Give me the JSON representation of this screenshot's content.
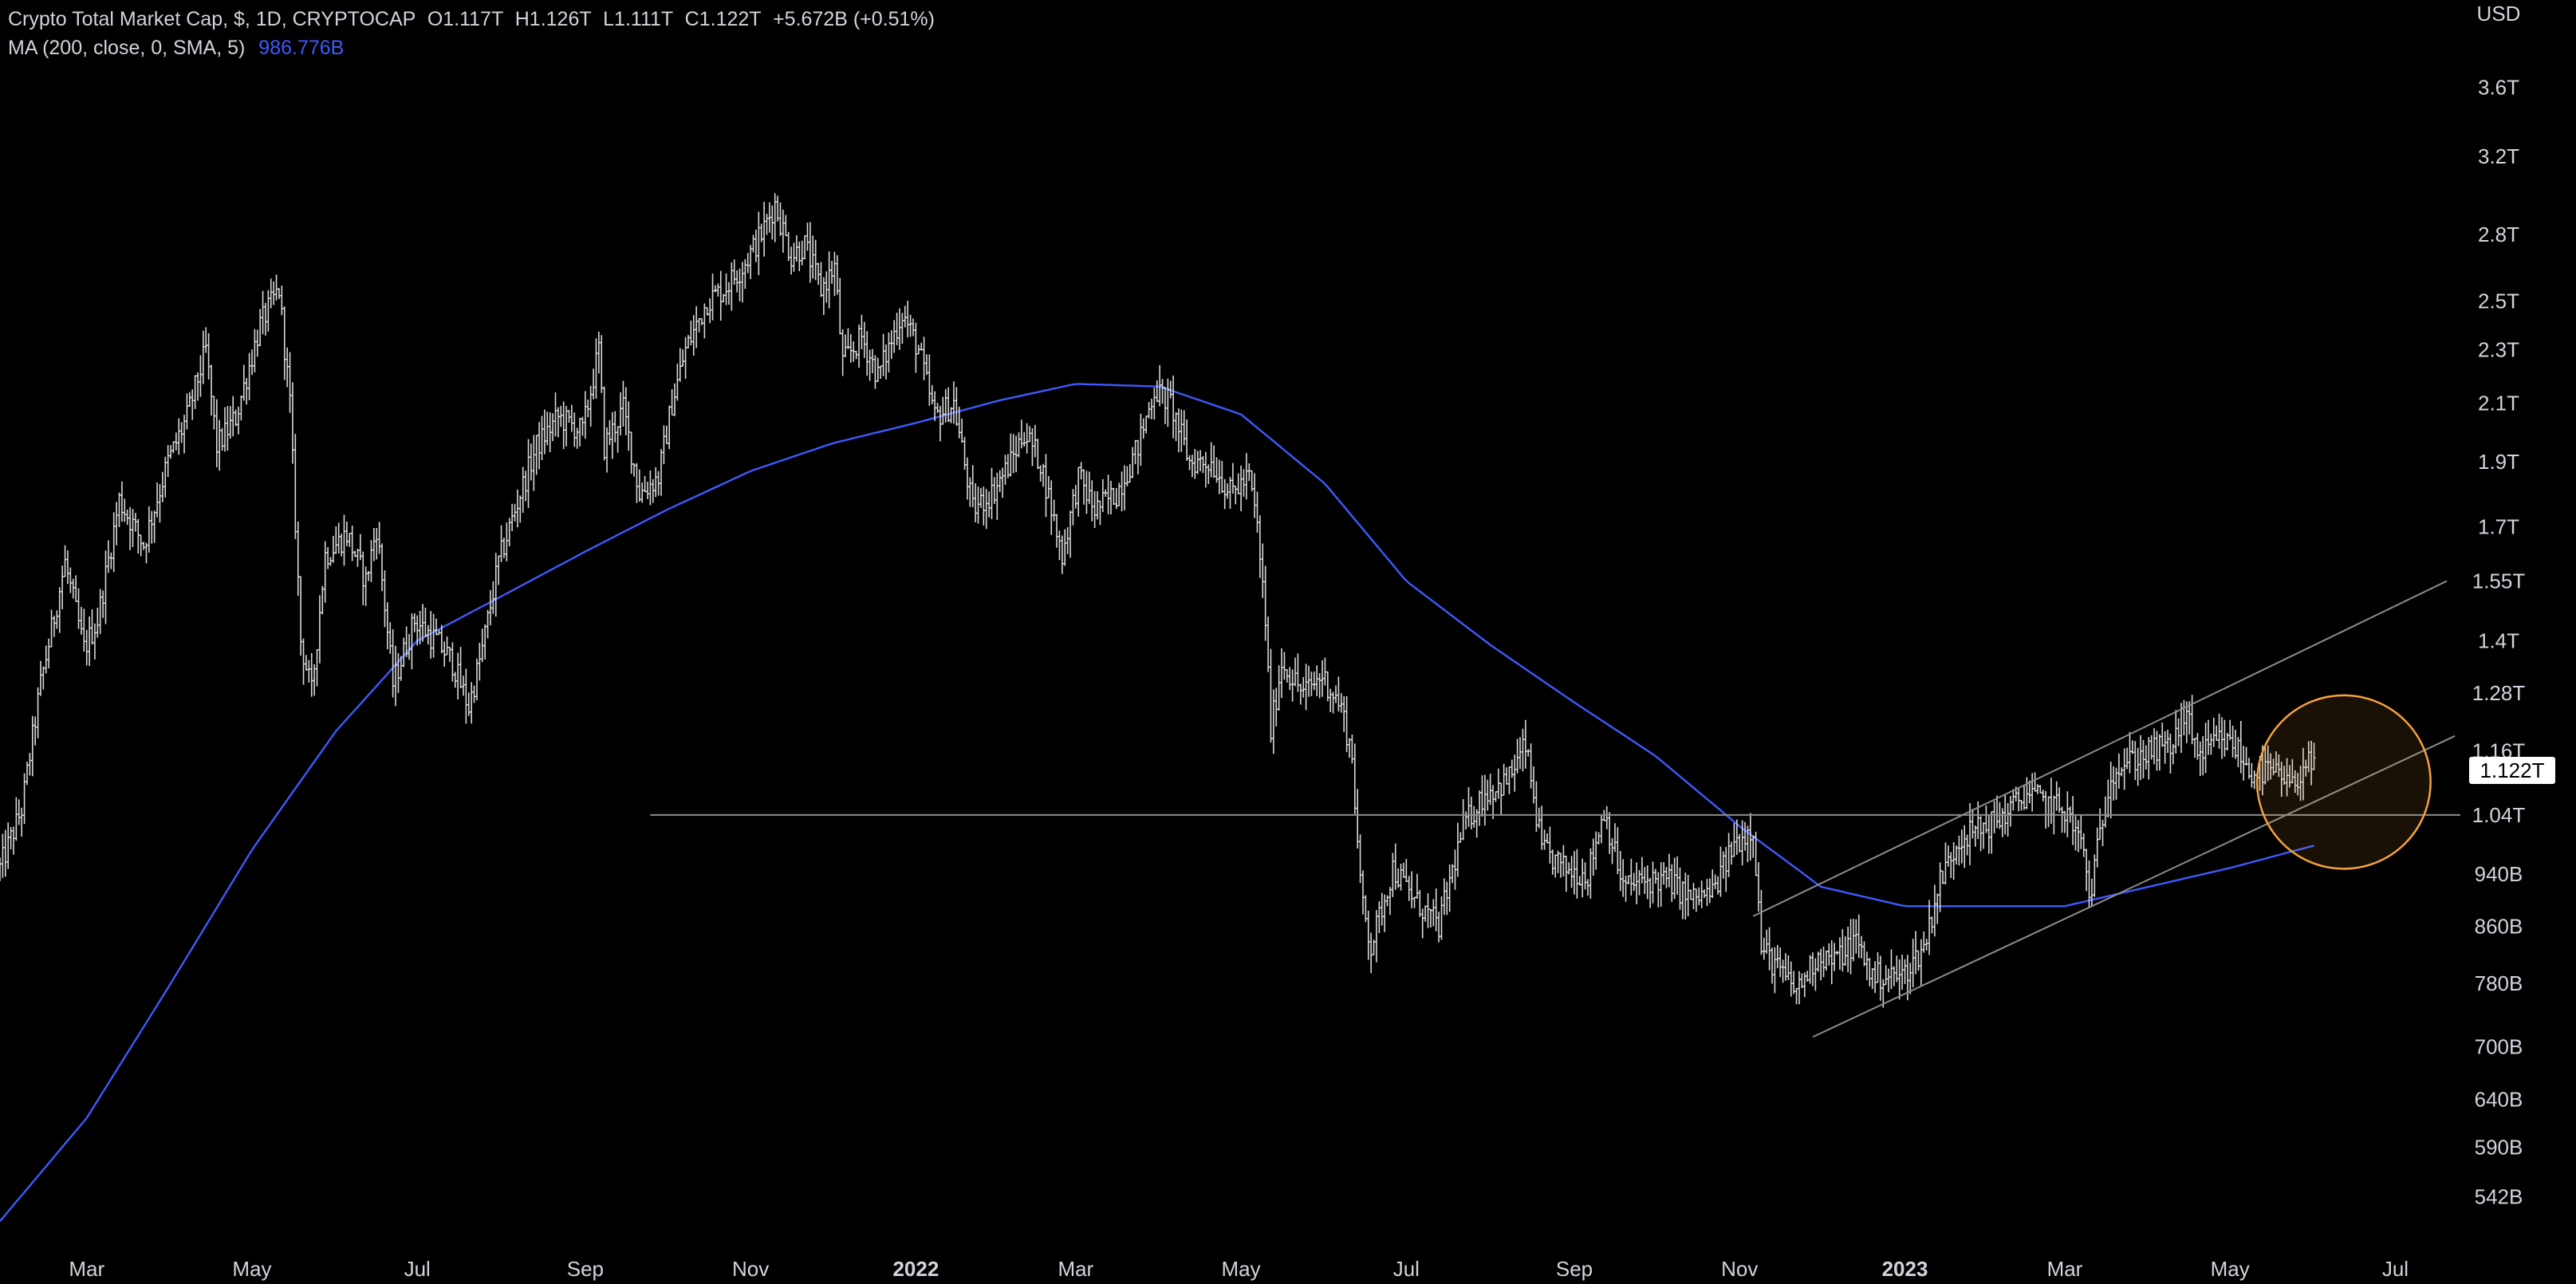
{
  "legend": {
    "symbol_line": "Crypto Total Market Cap, $, 1D, CRYPTOCAP",
    "open": "O1.117T",
    "high": "H1.126T",
    "low": "L1.111T",
    "close": "C1.122T",
    "change": "+5.672B (+0.51%)",
    "ma_label": "MA (200, close, 0, SMA, 5)",
    "ma_value": "986.776B"
  },
  "colors": {
    "background": "#000000",
    "candles": "#d9d9d9",
    "ma_line": "#3d5afe",
    "trend_lines": "#8c8c8c",
    "highlight_circle": "#f7a23b",
    "text": "#d1d4dc"
  },
  "chart_data": {
    "type": "bar",
    "style": "ohlc-daily",
    "scale": "log",
    "currency": "USD",
    "x_range": [
      "2021-01-28",
      "2023-07-25"
    ],
    "ylim": [
      0.5,
      3.85
    ],
    "y_ticks": [
      {
        "label": "3.6T",
        "value": 3.6
      },
      {
        "label": "3.2T",
        "value": 3.2
      },
      {
        "label": "2.8T",
        "value": 2.8
      },
      {
        "label": "2.5T",
        "value": 2.5
      },
      {
        "label": "2.3T",
        "value": 2.3
      },
      {
        "label": "2.1T",
        "value": 2.1
      },
      {
        "label": "1.9T",
        "value": 1.9
      },
      {
        "label": "1.7T",
        "value": 1.7
      },
      {
        "label": "1.55T",
        "value": 1.55
      },
      {
        "label": "1.4T",
        "value": 1.4
      },
      {
        "label": "1.28T",
        "value": 1.28
      },
      {
        "label": "1.16T",
        "value": 1.16
      },
      {
        "label": "1.04T",
        "value": 1.04
      },
      {
        "label": "940B",
        "value": 0.94
      },
      {
        "label": "860B",
        "value": 0.86
      },
      {
        "label": "780B",
        "value": 0.78
      },
      {
        "label": "700B",
        "value": 0.7
      },
      {
        "label": "640B",
        "value": 0.64
      },
      {
        "label": "590B",
        "value": 0.59
      },
      {
        "label": "542B",
        "value": 0.542
      }
    ],
    "x_ticks": [
      {
        "label": "Mar",
        "date": "2021-03-01",
        "bold": false
      },
      {
        "label": "May",
        "date": "2021-05-01",
        "bold": false
      },
      {
        "label": "Jul",
        "date": "2021-07-01",
        "bold": false
      },
      {
        "label": "Sep",
        "date": "2021-09-01",
        "bold": false
      },
      {
        "label": "Nov",
        "date": "2021-11-01",
        "bold": false
      },
      {
        "label": "2022",
        "date": "2022-01-01",
        "bold": true
      },
      {
        "label": "Mar",
        "date": "2022-03-01",
        "bold": false
      },
      {
        "label": "May",
        "date": "2022-05-01",
        "bold": false
      },
      {
        "label": "Jul",
        "date": "2022-07-01",
        "bold": false
      },
      {
        "label": "Sep",
        "date": "2022-09-01",
        "bold": false
      },
      {
        "label": "Nov",
        "date": "2022-11-01",
        "bold": false
      },
      {
        "label": "2023",
        "date": "2023-01-01",
        "bold": true
      },
      {
        "label": "Mar",
        "date": "2023-03-01",
        "bold": false
      },
      {
        "label": "May",
        "date": "2023-05-01",
        "bold": false
      },
      {
        "label": "Jul",
        "date": "2023-07-01",
        "bold": false
      }
    ],
    "axis_unit_label": "USD",
    "last_price": {
      "label": "1.122T",
      "value": 1.122
    },
    "price_path": [
      [
        "2021-01-28",
        0.95
      ],
      [
        "2021-02-05",
        1.05
      ],
      [
        "2021-02-12",
        1.3
      ],
      [
        "2021-02-21",
        1.6
      ],
      [
        "2021-02-28",
        1.38
      ],
      [
        "2021-03-05",
        1.45
      ],
      [
        "2021-03-13",
        1.78
      ],
      [
        "2021-03-22",
        1.65
      ],
      [
        "2021-03-31",
        1.9
      ],
      [
        "2021-04-07",
        2.05
      ],
      [
        "2021-04-14",
        2.3
      ],
      [
        "2021-04-18",
        1.95
      ],
      [
        "2021-04-25",
        2.05
      ],
      [
        "2021-05-04",
        2.4
      ],
      [
        "2021-05-11",
        2.55
      ],
      [
        "2021-05-15",
        2.1
      ],
      [
        "2021-05-19",
        1.4
      ],
      [
        "2021-05-23",
        1.28
      ],
      [
        "2021-05-28",
        1.62
      ],
      [
        "2021-06-05",
        1.68
      ],
      [
        "2021-06-12",
        1.55
      ],
      [
        "2021-06-16",
        1.7
      ],
      [
        "2021-06-22",
        1.3
      ],
      [
        "2021-06-30",
        1.45
      ],
      [
        "2021-07-08",
        1.4
      ],
      [
        "2021-07-14",
        1.35
      ],
      [
        "2021-07-20",
        1.25
      ],
      [
        "2021-07-25",
        1.38
      ],
      [
        "2021-07-31",
        1.6
      ],
      [
        "2021-08-08",
        1.8
      ],
      [
        "2021-08-14",
        1.95
      ],
      [
        "2021-08-22",
        2.05
      ],
      [
        "2021-08-31",
        2.0
      ],
      [
        "2021-09-06",
        2.3
      ],
      [
        "2021-09-08",
        1.95
      ],
      [
        "2021-09-15",
        2.08
      ],
      [
        "2021-09-21",
        1.8
      ],
      [
        "2021-09-28",
        1.85
      ],
      [
        "2021-10-03",
        2.1
      ],
      [
        "2021-10-08",
        2.3
      ],
      [
        "2021-10-16",
        2.5
      ],
      [
        "2021-10-22",
        2.55
      ],
      [
        "2021-10-29",
        2.65
      ],
      [
        "2021-11-05",
        2.8
      ],
      [
        "2021-11-10",
        2.95
      ],
      [
        "2021-11-16",
        2.7
      ],
      [
        "2021-11-21",
        2.75
      ],
      [
        "2021-11-27",
        2.55
      ],
      [
        "2021-12-02",
        2.65
      ],
      [
        "2021-12-05",
        2.25
      ],
      [
        "2021-12-12",
        2.35
      ],
      [
        "2021-12-18",
        2.2
      ],
      [
        "2021-12-27",
        2.45
      ],
      [
        "2022-01-02",
        2.3
      ],
      [
        "2022-01-08",
        2.05
      ],
      [
        "2022-01-15",
        2.1
      ],
      [
        "2022-01-22",
        1.75
      ],
      [
        "2022-01-29",
        1.8
      ],
      [
        "2022-02-05",
        1.9
      ],
      [
        "2022-02-10",
        2.0
      ],
      [
        "2022-02-16",
        1.9
      ],
      [
        "2022-02-24",
        1.62
      ],
      [
        "2022-03-02",
        1.85
      ],
      [
        "2022-03-08",
        1.75
      ],
      [
        "2022-03-16",
        1.8
      ],
      [
        "2022-03-24",
        1.95
      ],
      [
        "2022-03-30",
        2.15
      ],
      [
        "2022-04-05",
        2.1
      ],
      [
        "2022-04-12",
        1.9
      ],
      [
        "2022-04-20",
        1.9
      ],
      [
        "2022-04-27",
        1.8
      ],
      [
        "2022-05-04",
        1.85
      ],
      [
        "2022-05-07",
        1.7
      ],
      [
        "2022-05-10",
        1.45
      ],
      [
        "2022-05-12",
        1.2
      ],
      [
        "2022-05-16",
        1.35
      ],
      [
        "2022-05-24",
        1.28
      ],
      [
        "2022-05-31",
        1.32
      ],
      [
        "2022-06-07",
        1.25
      ],
      [
        "2022-06-11",
        1.15
      ],
      [
        "2022-06-14",
        0.92
      ],
      [
        "2022-06-18",
        0.83
      ],
      [
        "2022-06-26",
        0.95
      ],
      [
        "2022-07-04",
        0.9
      ],
      [
        "2022-07-13",
        0.86
      ],
      [
        "2022-07-22",
        1.02
      ],
      [
        "2022-07-30",
        1.08
      ],
      [
        "2022-08-07",
        1.1
      ],
      [
        "2022-08-14",
        1.17
      ],
      [
        "2022-08-20",
        0.98
      ],
      [
        "2022-08-28",
        0.95
      ],
      [
        "2022-09-06",
        0.94
      ],
      [
        "2022-09-12",
        1.05
      ],
      [
        "2022-09-19",
        0.92
      ],
      [
        "2022-09-28",
        0.93
      ],
      [
        "2022-10-06",
        0.93
      ],
      [
        "2022-10-14",
        0.9
      ],
      [
        "2022-10-22",
        0.91
      ],
      [
        "2022-10-30",
        0.99
      ],
      [
        "2022-11-06",
        1.02
      ],
      [
        "2022-11-09",
        0.83
      ],
      [
        "2022-11-15",
        0.8
      ],
      [
        "2022-11-22",
        0.77
      ],
      [
        "2022-11-30",
        0.82
      ],
      [
        "2022-12-06",
        0.81
      ],
      [
        "2022-12-14",
        0.84
      ],
      [
        "2022-12-20",
        0.79
      ],
      [
        "2022-12-31",
        0.79
      ],
      [
        "2023-01-08",
        0.83
      ],
      [
        "2023-01-14",
        0.93
      ],
      [
        "2023-01-21",
        1.0
      ],
      [
        "2023-01-31",
        1.02
      ],
      [
        "2023-02-07",
        1.04
      ],
      [
        "2023-02-15",
        1.08
      ],
      [
        "2023-02-22",
        1.06
      ],
      [
        "2023-03-01",
        1.05
      ],
      [
        "2023-03-08",
        0.98
      ],
      [
        "2023-03-10",
        0.9
      ],
      [
        "2023-03-18",
        1.12
      ],
      [
        "2023-03-25",
        1.14
      ],
      [
        "2023-04-03",
        1.16
      ],
      [
        "2023-04-10",
        1.17
      ],
      [
        "2023-04-14",
        1.24
      ],
      [
        "2023-04-20",
        1.15
      ],
      [
        "2023-04-27",
        1.18
      ],
      [
        "2023-05-03",
        1.17
      ],
      [
        "2023-05-08",
        1.12
      ],
      [
        "2023-05-16",
        1.12
      ],
      [
        "2023-05-24",
        1.09
      ],
      [
        "2023-05-29",
        1.14
      ],
      [
        "2023-06-01",
        1.122
      ]
    ],
    "ma_path": [
      [
        "2021-01-28",
        0.52
      ],
      [
        "2021-03-01",
        0.62
      ],
      [
        "2021-04-01",
        0.78
      ],
      [
        "2021-05-01",
        0.98
      ],
      [
        "2021-06-01",
        1.2
      ],
      [
        "2021-07-01",
        1.4
      ],
      [
        "2021-08-01",
        1.51
      ],
      [
        "2021-09-01",
        1.63
      ],
      [
        "2021-10-01",
        1.75
      ],
      [
        "2021-11-01",
        1.87
      ],
      [
        "2021-12-01",
        1.96
      ],
      [
        "2022-01-01",
        2.03
      ],
      [
        "2022-02-01",
        2.11
      ],
      [
        "2022-03-01",
        2.17
      ],
      [
        "2022-04-01",
        2.16
      ],
      [
        "2022-05-01",
        2.06
      ],
      [
        "2022-06-01",
        1.83
      ],
      [
        "2022-07-01",
        1.55
      ],
      [
        "2022-08-01",
        1.39
      ],
      [
        "2022-09-01",
        1.26
      ],
      [
        "2022-10-01",
        1.15
      ],
      [
        "2022-11-01",
        1.02
      ],
      [
        "2022-12-01",
        0.92
      ],
      [
        "2023-01-01",
        0.89
      ],
      [
        "2023-02-01",
        0.89
      ],
      [
        "2023-03-01",
        0.89
      ],
      [
        "2023-04-01",
        0.92
      ],
      [
        "2023-05-01",
        0.95
      ],
      [
        "2023-06-01",
        0.987
      ]
    ],
    "annotations": [
      {
        "kind": "horizontal_line",
        "from": "2021-09-25",
        "to": "2023-07-25",
        "value": 1.04
      },
      {
        "kind": "trend_line",
        "from": [
          "2022-11-06",
          0.875
        ],
        "to": [
          "2023-07-20",
          1.55
        ]
      },
      {
        "kind": "trend_line",
        "from": [
          "2022-11-28",
          0.712
        ],
        "to": [
          "2023-07-23",
          1.19
        ]
      },
      {
        "kind": "circle",
        "center": [
          "2023-06-12",
          1.1
        ],
        "radius_days": 32
      }
    ]
  }
}
